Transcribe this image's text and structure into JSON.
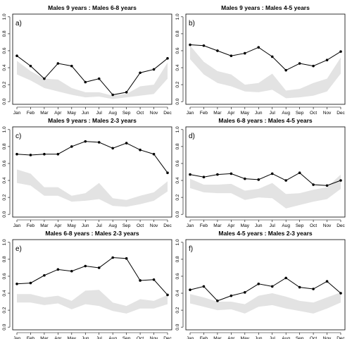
{
  "chart_data": {
    "months": [
      "Jan",
      "Feb",
      "Mar",
      "Apr",
      "May",
      "Jun",
      "Jul",
      "Aug",
      "Sep",
      "Oct",
      "Nov",
      "Dec"
    ],
    "y_ticks": [
      "0.0",
      "0.2",
      "0.4",
      "0.6",
      "0.8",
      "1.0"
    ],
    "ylim": [
      0,
      1
    ],
    "band_color": "#e3e3e3",
    "line_color": "#000000",
    "panels": [
      {
        "type": "line",
        "title": "Males 9 years : Males 6-8 years",
        "label": "a)",
        "values": [
          0.54,
          0.42,
          0.27,
          0.45,
          0.42,
          0.23,
          0.27,
          0.08,
          0.11,
          0.34,
          0.38,
          0.51
        ],
        "band_upper": [
          0.48,
          0.36,
          0.27,
          0.26,
          0.16,
          0.11,
          0.11,
          0.07,
          0.09,
          0.18,
          0.2,
          0.46
        ],
        "band_lower": [
          0.32,
          0.25,
          0.16,
          0.12,
          0.08,
          0.05,
          0.06,
          0.03,
          0.05,
          0.07,
          0.09,
          0.27
        ]
      },
      {
        "type": "line",
        "title": "Males 9 years : Males 4-5 years",
        "label": "b)",
        "values": [
          0.67,
          0.66,
          0.6,
          0.54,
          0.57,
          0.64,
          0.53,
          0.37,
          0.45,
          0.42,
          0.49,
          0.59
        ],
        "band_upper": [
          0.66,
          0.47,
          0.36,
          0.32,
          0.2,
          0.22,
          0.33,
          0.13,
          0.15,
          0.22,
          0.27,
          0.52
        ],
        "band_lower": [
          0.5,
          0.32,
          0.22,
          0.18,
          0.12,
          0.11,
          0.14,
          0.04,
          0.05,
          0.07,
          0.12,
          0.33
        ]
      },
      {
        "type": "line",
        "title": "Males 9 years : Males 2-3 years",
        "label": "c)",
        "values": [
          0.71,
          0.7,
          0.71,
          0.71,
          0.8,
          0.86,
          0.85,
          0.78,
          0.84,
          0.76,
          0.71,
          0.49
        ],
        "band_upper": [
          0.53,
          0.48,
          0.32,
          0.32,
          0.22,
          0.25,
          0.37,
          0.19,
          0.17,
          0.22,
          0.26,
          0.39
        ],
        "band_lower": [
          0.37,
          0.34,
          0.22,
          0.22,
          0.15,
          0.16,
          0.18,
          0.1,
          0.09,
          0.12,
          0.16,
          0.27
        ]
      },
      {
        "type": "line",
        "title": "Males 6-8 years : Males 4-5 years",
        "label": "d)",
        "values": [
          0.47,
          0.44,
          0.47,
          0.48,
          0.42,
          0.41,
          0.48,
          0.4,
          0.49,
          0.35,
          0.34,
          0.4
        ],
        "band_upper": [
          0.42,
          0.35,
          0.35,
          0.36,
          0.28,
          0.3,
          0.37,
          0.24,
          0.25,
          0.29,
          0.32,
          0.47
        ],
        "band_lower": [
          0.31,
          0.26,
          0.25,
          0.25,
          0.17,
          0.2,
          0.19,
          0.07,
          0.11,
          0.15,
          0.18,
          0.3
        ]
      },
      {
        "type": "line",
        "title": "Males 6-8 years : Males 2-3 years",
        "label": "e)",
        "values": [
          0.51,
          0.52,
          0.61,
          0.68,
          0.66,
          0.72,
          0.7,
          0.82,
          0.81,
          0.55,
          0.56,
          0.38
        ],
        "band_upper": [
          0.39,
          0.39,
          0.35,
          0.37,
          0.31,
          0.43,
          0.44,
          0.29,
          0.25,
          0.33,
          0.31,
          0.38
        ],
        "band_lower": [
          0.29,
          0.29,
          0.26,
          0.28,
          0.21,
          0.27,
          0.25,
          0.19,
          0.16,
          0.22,
          0.22,
          0.27
        ]
      },
      {
        "type": "line",
        "title": "Males 4-5 years : Males 2-3 years",
        "label": "f)",
        "values": [
          0.44,
          0.48,
          0.31,
          0.37,
          0.41,
          0.51,
          0.48,
          0.58,
          0.47,
          0.45,
          0.54,
          0.4
        ],
        "band_upper": [
          0.39,
          0.35,
          0.3,
          0.3,
          0.27,
          0.37,
          0.4,
          0.36,
          0.31,
          0.29,
          0.35,
          0.41
        ],
        "band_lower": [
          0.28,
          0.24,
          0.2,
          0.21,
          0.16,
          0.24,
          0.26,
          0.22,
          0.19,
          0.16,
          0.22,
          0.29
        ]
      }
    ]
  }
}
